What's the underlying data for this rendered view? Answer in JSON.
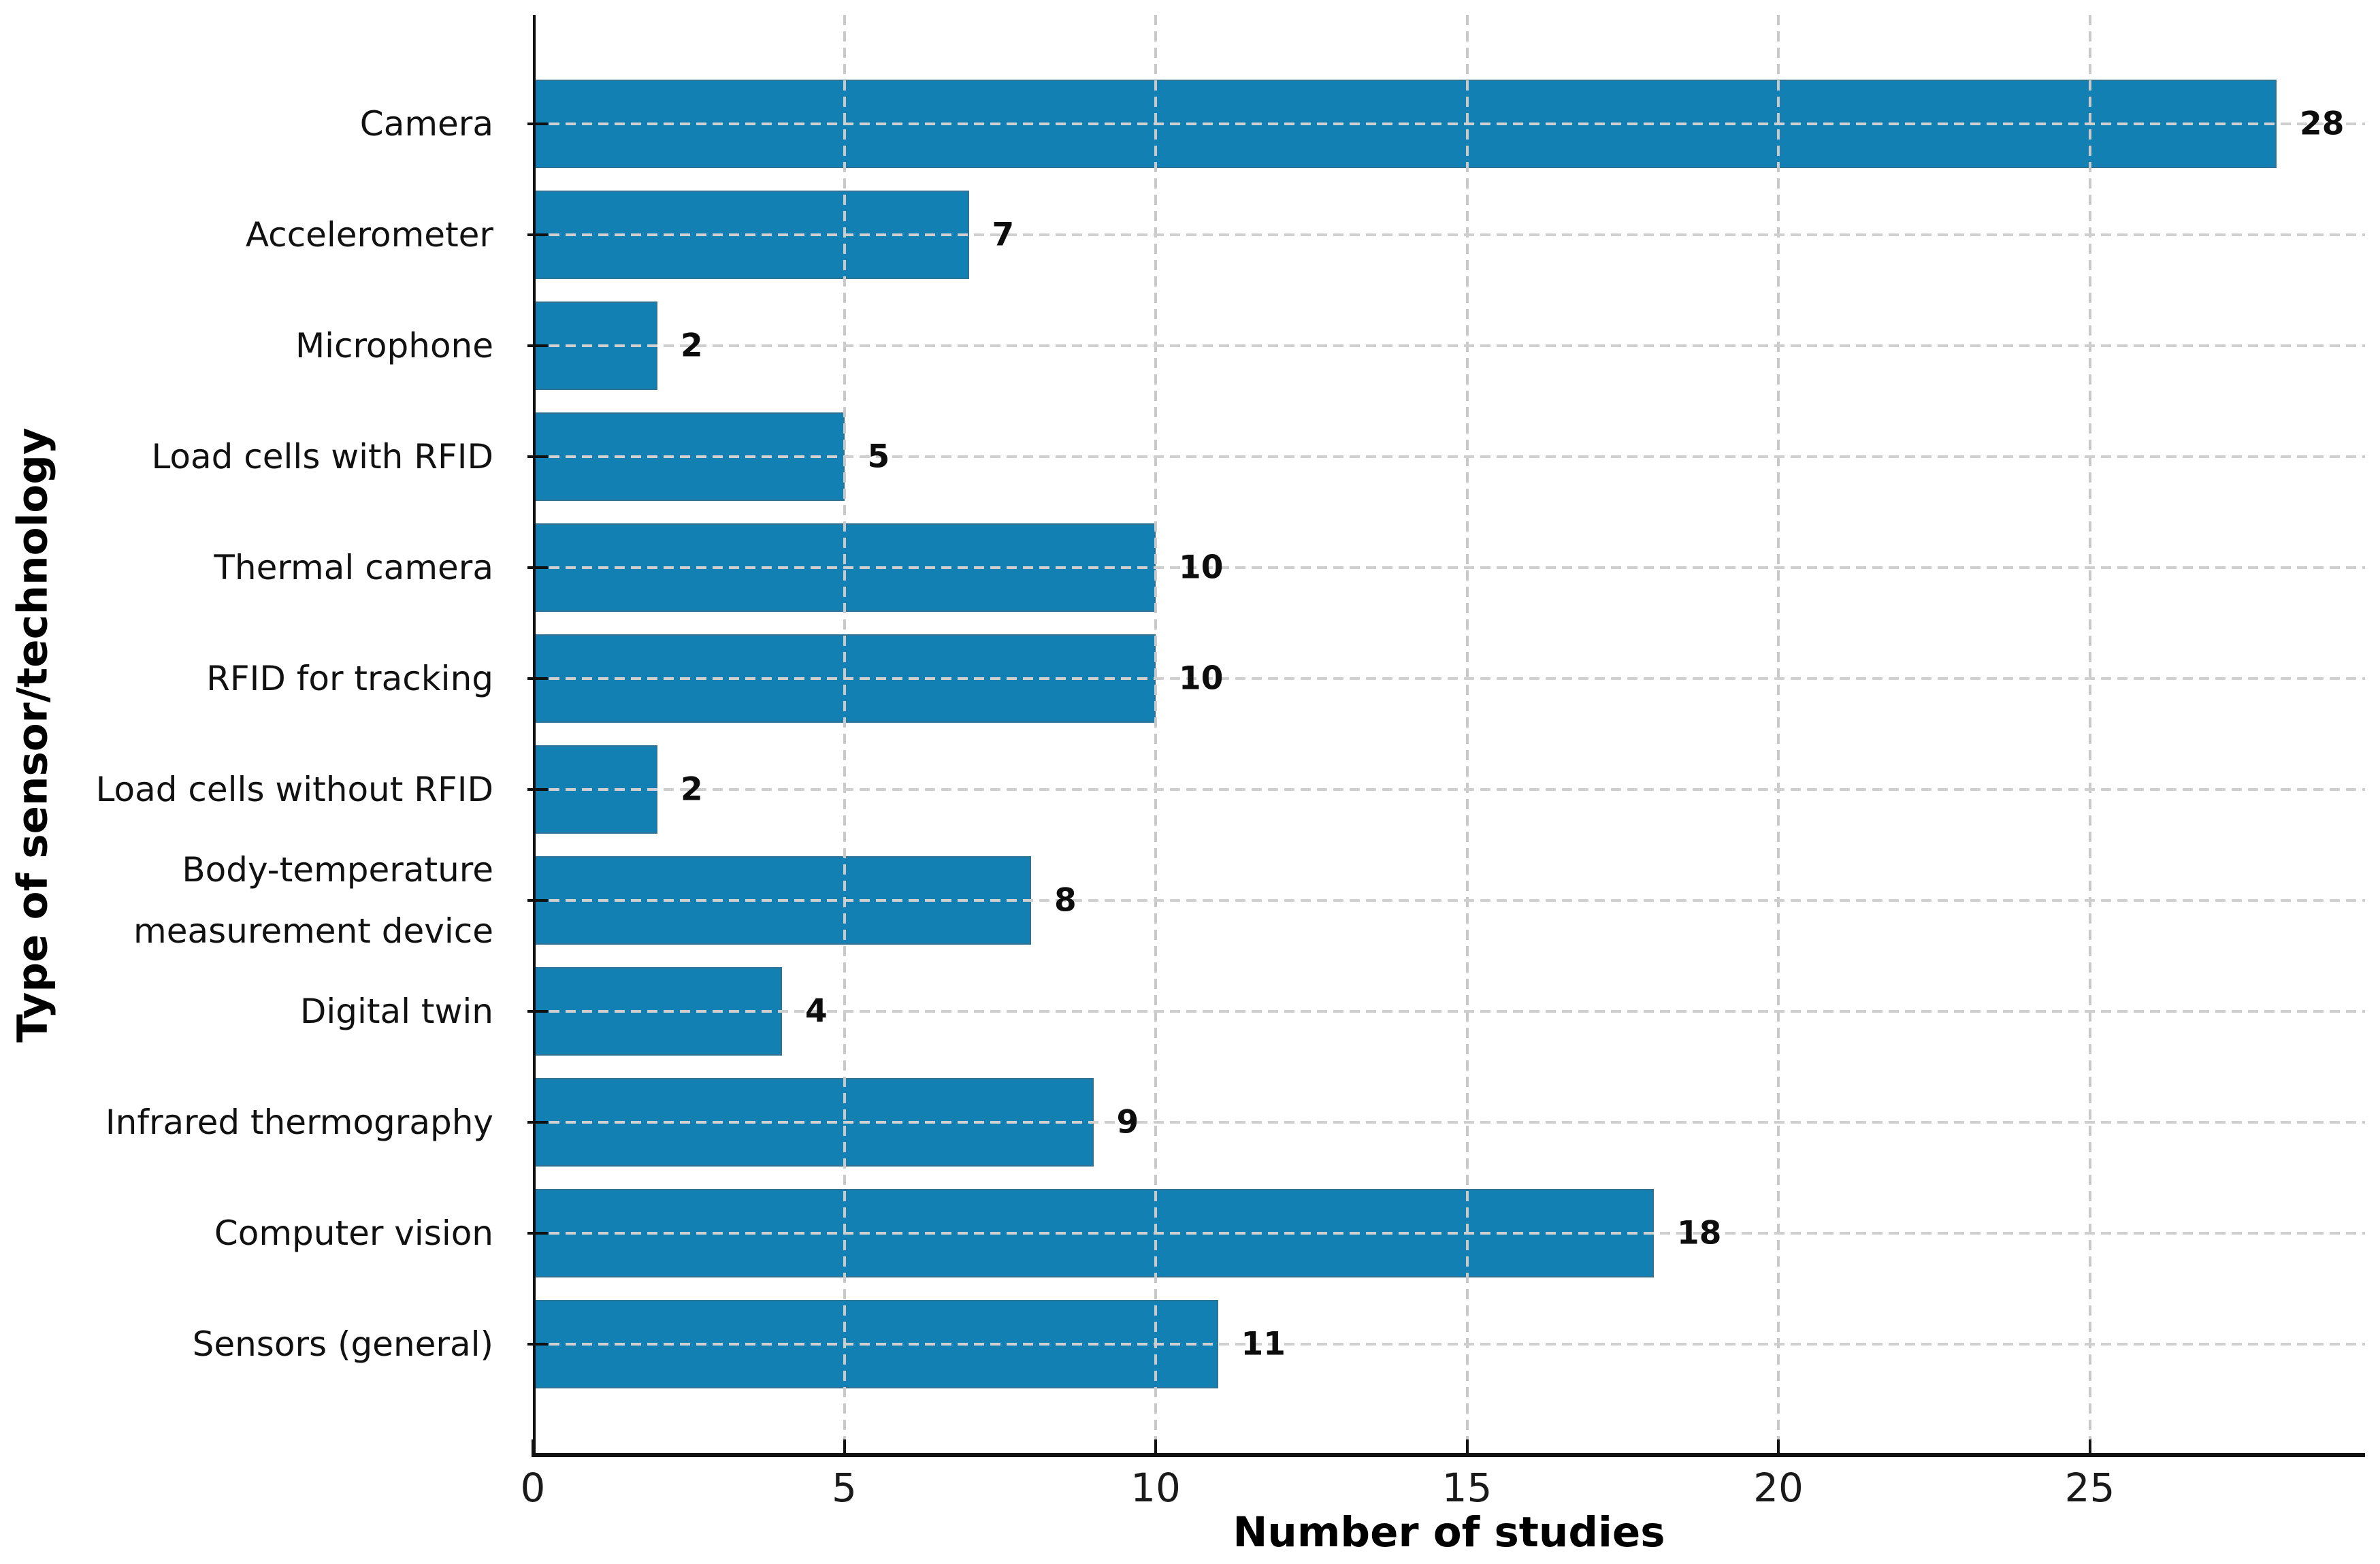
{
  "chart_data": {
    "type": "bar",
    "orientation": "horizontal",
    "title": "",
    "xlabel": "Number of studies",
    "ylabel": "Type of sensor/technology",
    "categories": [
      "Camera",
      "Accelerometer",
      "Microphone",
      "Load cells with RFID",
      "Thermal camera",
      "RFID for tracking",
      "Load cells without RFID",
      "Body-temperature\nmeasurement  device",
      "Digital twin",
      "Infrared thermography",
      "Computer vision",
      "Sensors (general)"
    ],
    "values": [
      28,
      7,
      2,
      5,
      10,
      10,
      2,
      8,
      4,
      9,
      18,
      11
    ],
    "value_labels_shown": true,
    "xticks": [
      0,
      5,
      10,
      15,
      20,
      25
    ],
    "xlim": [
      0,
      29.4
    ],
    "grid": {
      "visible": true,
      "style": "dashed",
      "axes": "both"
    },
    "legend": null,
    "colors": {
      "bar": "#1280b2",
      "grid": "#c9c9c9",
      "axis": "#111111",
      "text": "#111111"
    }
  }
}
